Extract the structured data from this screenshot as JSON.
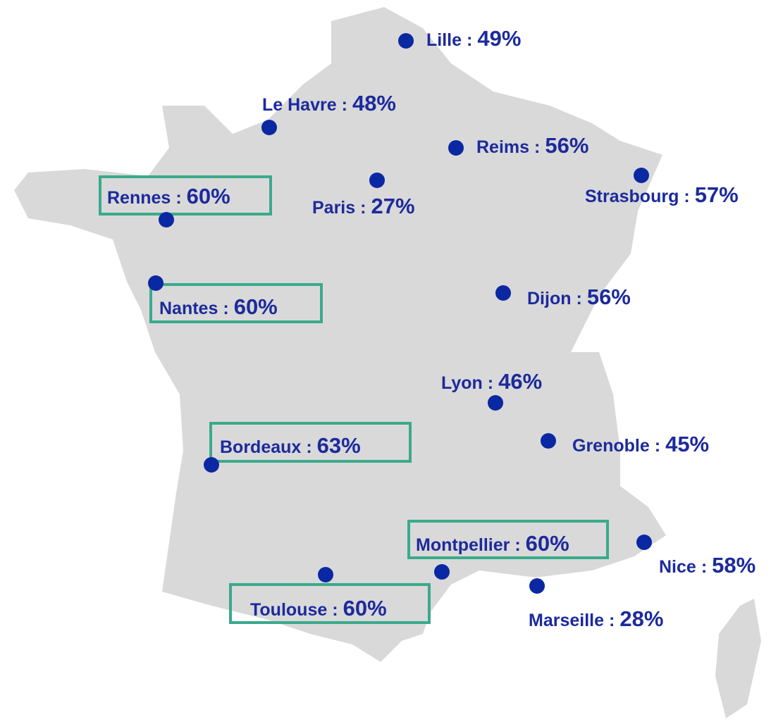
{
  "separator": ":",
  "cities": [
    {
      "name": "Lille",
      "value": "49%",
      "highlighted": false
    },
    {
      "name": "Le Havre",
      "value": "48%",
      "highlighted": false
    },
    {
      "name": "Reims",
      "value": "56%",
      "highlighted": false
    },
    {
      "name": "Strasbourg",
      "value": "57%",
      "highlighted": false
    },
    {
      "name": "Paris",
      "value": "27%",
      "highlighted": false
    },
    {
      "name": "Rennes",
      "value": "60%",
      "highlighted": true
    },
    {
      "name": "Nantes",
      "value": "60%",
      "highlighted": true
    },
    {
      "name": "Dijon",
      "value": "56%",
      "highlighted": false
    },
    {
      "name": "Lyon",
      "value": "46%",
      "highlighted": false
    },
    {
      "name": "Grenoble",
      "value": "45%",
      "highlighted": false
    },
    {
      "name": "Bordeaux",
      "value": "63%",
      "highlighted": true
    },
    {
      "name": "Montpellier",
      "value": "60%",
      "highlighted": true
    },
    {
      "name": "Toulouse",
      "value": "60%",
      "highlighted": true
    },
    {
      "name": "Nice",
      "value": "58%",
      "highlighted": false
    },
    {
      "name": "Marseille",
      "value": "28%",
      "highlighted": false
    }
  ]
}
